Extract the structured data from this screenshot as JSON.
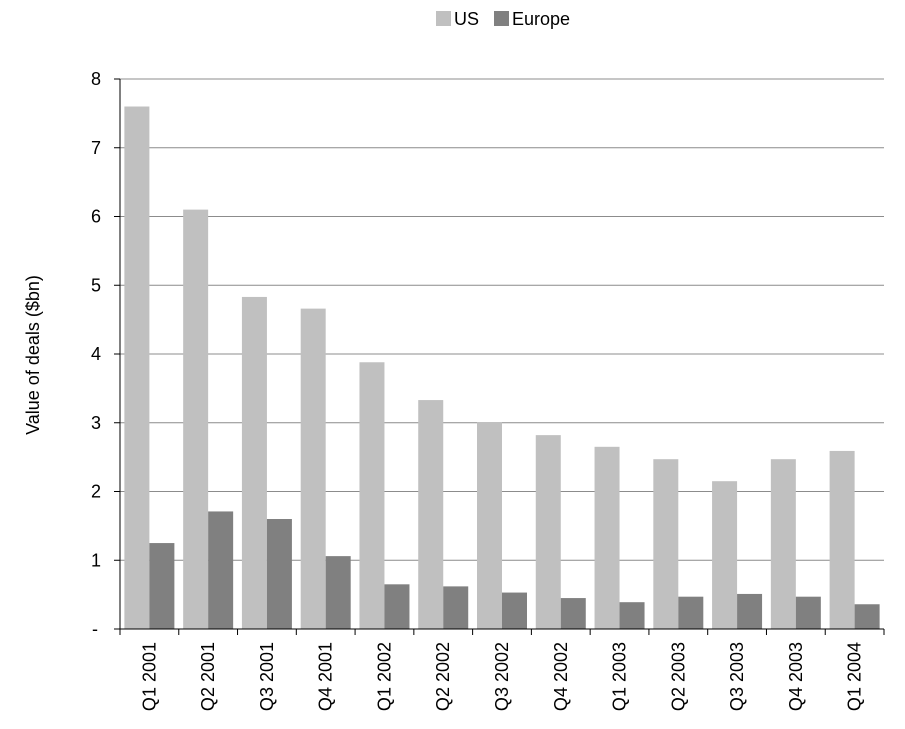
{
  "chart_data": {
    "type": "bar",
    "title": "",
    "xlabel": "",
    "ylabel": "Value of deals ($bn)",
    "ylim": [
      0,
      8
    ],
    "yticks": [
      0,
      1,
      2,
      3,
      4,
      5,
      6,
      7,
      8
    ],
    "ytick_labels": [
      "-",
      "1",
      "2",
      "3",
      "4",
      "5",
      "6",
      "7",
      "8"
    ],
    "grid": "horizontal",
    "legend": "top-center",
    "categories": [
      "Q1 2001",
      "Q2 2001",
      "Q3 2001",
      "Q4 2001",
      "Q1 2002",
      "Q2 2002",
      "Q3 2002",
      "Q4 2002",
      "Q1 2003",
      "Q2 2003",
      "Q3 2003",
      "Q4 2003",
      "Q1 2004"
    ],
    "series": [
      {
        "name": "US",
        "color": "#c0c0c0",
        "values": [
          7.6,
          6.1,
          4.83,
          4.66,
          3.88,
          3.33,
          3.01,
          2.82,
          2.65,
          2.47,
          2.15,
          2.47,
          2.59
        ]
      },
      {
        "name": "Europe",
        "color": "#808080",
        "values": [
          1.25,
          1.71,
          1.6,
          1.06,
          0.65,
          0.62,
          0.53,
          0.45,
          0.39,
          0.47,
          0.51,
          0.47,
          0.36
        ]
      }
    ]
  }
}
